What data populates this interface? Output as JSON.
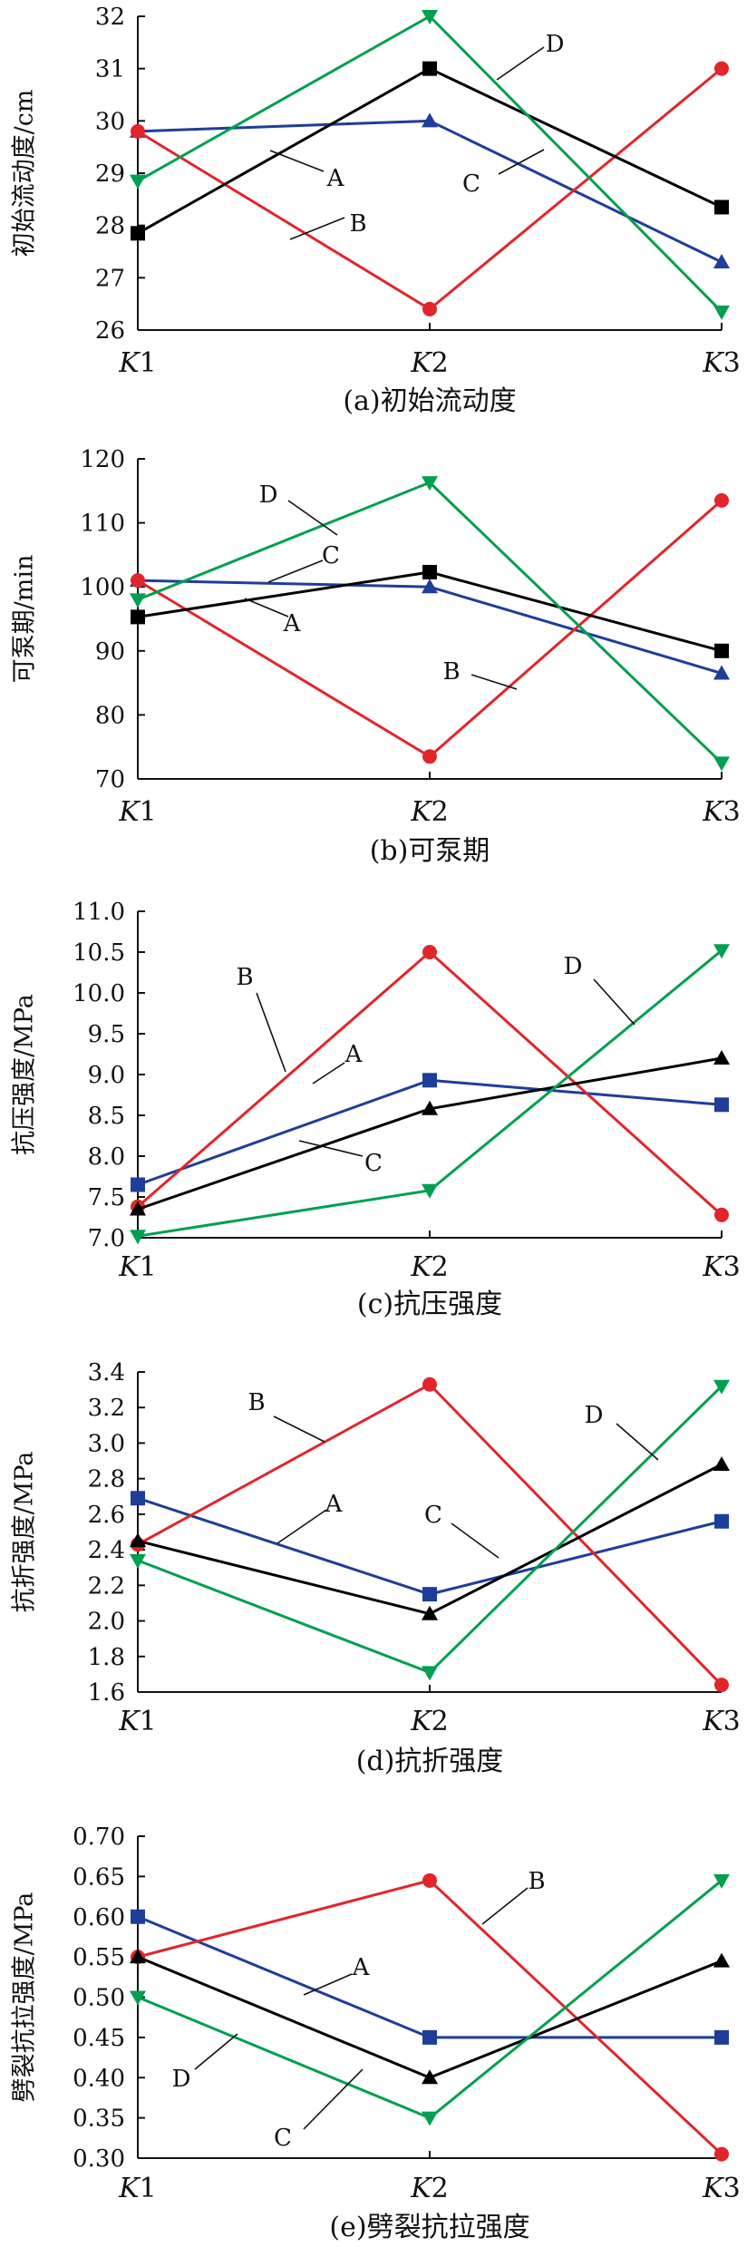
{
  "colors": {
    "A": "#1f3e99",
    "B": "#e0262b",
    "C": "#000000",
    "D": "#00a050"
  },
  "chart_data": [
    {
      "type": "line",
      "title": "(a)初始流动度",
      "ylabel": "初始流动度/cm",
      "categories": [
        "K1",
        "K2",
        "K3"
      ],
      "cat_prefix": "K",
      "cat_suffix": [
        "1",
        "2",
        "3"
      ],
      "ylim": [
        26,
        32
      ],
      "yticks": [
        "26",
        "27",
        "28",
        "29",
        "30",
        "31",
        "32"
      ],
      "series": [
        {
          "name": "A",
          "marker": "triangle",
          "values": [
            29.8,
            30.0,
            27.3
          ]
        },
        {
          "name": "B",
          "marker": "circle",
          "values": [
            29.8,
            26.4,
            31.0
          ]
        },
        {
          "name": "C",
          "marker": "square",
          "values": [
            27.85,
            31.0,
            28.35
          ]
        },
        {
          "name": "D",
          "marker": "triangle-down",
          "values": [
            28.85,
            32.0,
            26.35
          ]
        }
      ],
      "grid": false
    },
    {
      "type": "line",
      "title": "(b)可泵期",
      "ylabel": "可泵期/min",
      "categories": [
        "K1",
        "K2",
        "K3"
      ],
      "cat_prefix": "K",
      "cat_suffix": [
        "1",
        "2",
        "3"
      ],
      "ylim": [
        70,
        120
      ],
      "yticks": [
        "70",
        "80",
        "90",
        "100",
        "110",
        "120"
      ],
      "series": [
        {
          "name": "A",
          "marker": "triangle",
          "values": [
            101,
            100,
            86.5
          ]
        },
        {
          "name": "B",
          "marker": "circle",
          "values": [
            101,
            73.5,
            113.5
          ]
        },
        {
          "name": "C",
          "marker": "square",
          "values": [
            95.3,
            102.3,
            90
          ]
        },
        {
          "name": "D",
          "marker": "triangle-down",
          "values": [
            98,
            116.3,
            72.5
          ]
        }
      ],
      "grid": false
    },
    {
      "type": "line",
      "title": "(c)抗压强度",
      "ylabel": "抗压强度/MPa",
      "categories": [
        "K1",
        "K2",
        "K3"
      ],
      "cat_prefix": "K",
      "cat_suffix": [
        "1",
        "2",
        "3"
      ],
      "ylim": [
        7.0,
        11.0
      ],
      "yticks": [
        "7.0",
        "7.5",
        "8.0",
        "8.5",
        "9.0",
        "9.5",
        "10.0",
        "10.5",
        "11.0"
      ],
      "series": [
        {
          "name": "A",
          "marker": "square",
          "values": [
            7.65,
            8.93,
            8.63
          ]
        },
        {
          "name": "B",
          "marker": "circle",
          "values": [
            7.38,
            10.5,
            7.28
          ]
        },
        {
          "name": "C",
          "marker": "triangle",
          "values": [
            7.35,
            8.58,
            9.2
          ]
        },
        {
          "name": "D",
          "marker": "triangle-down",
          "values": [
            7.02,
            7.58,
            10.52
          ]
        }
      ],
      "grid": false
    },
    {
      "type": "line",
      "title": "(d)抗折强度",
      "ylabel": "抗折强度/MPa",
      "categories": [
        "K1",
        "K2",
        "K3"
      ],
      "cat_prefix": "K",
      "cat_suffix": [
        "1",
        "2",
        "3"
      ],
      "ylim": [
        1.6,
        3.4
      ],
      "yticks": [
        "1.6",
        "1.8",
        "2.0",
        "2.2",
        "2.4",
        "2.6",
        "2.8",
        "3.0",
        "3.2",
        "3.4"
      ],
      "series": [
        {
          "name": "A",
          "marker": "square",
          "values": [
            2.69,
            2.15,
            2.56
          ]
        },
        {
          "name": "B",
          "marker": "circle",
          "values": [
            2.43,
            3.33,
            1.64
          ]
        },
        {
          "name": "C",
          "marker": "triangle",
          "values": [
            2.45,
            2.04,
            2.88
          ]
        },
        {
          "name": "D",
          "marker": "triangle-down",
          "values": [
            2.34,
            1.71,
            3.32
          ]
        }
      ],
      "grid": false
    },
    {
      "type": "line",
      "title": "(e)劈裂抗拉强度",
      "ylabel": "劈裂抗拉强度/MPa",
      "categories": [
        "K1",
        "K2",
        "K3"
      ],
      "cat_prefix": "K",
      "cat_suffix": [
        "1",
        "2",
        "3"
      ],
      "ylim": [
        0.3,
        0.7
      ],
      "yticks": [
        "0.30",
        "0.35",
        "0.40",
        "0.45",
        "0.50",
        "0.55",
        "0.60",
        "0.65",
        "0.70"
      ],
      "series": [
        {
          "name": "A",
          "marker": "square",
          "values": [
            0.6,
            0.45,
            0.45
          ]
        },
        {
          "name": "B",
          "marker": "circle",
          "values": [
            0.55,
            0.645,
            0.305
          ]
        },
        {
          "name": "C",
          "marker": "triangle",
          "values": [
            0.55,
            0.4,
            0.545
          ]
        },
        {
          "name": "D",
          "marker": "triangle-down",
          "values": [
            0.5,
            0.35,
            0.645
          ]
        }
      ],
      "grid": false
    }
  ]
}
